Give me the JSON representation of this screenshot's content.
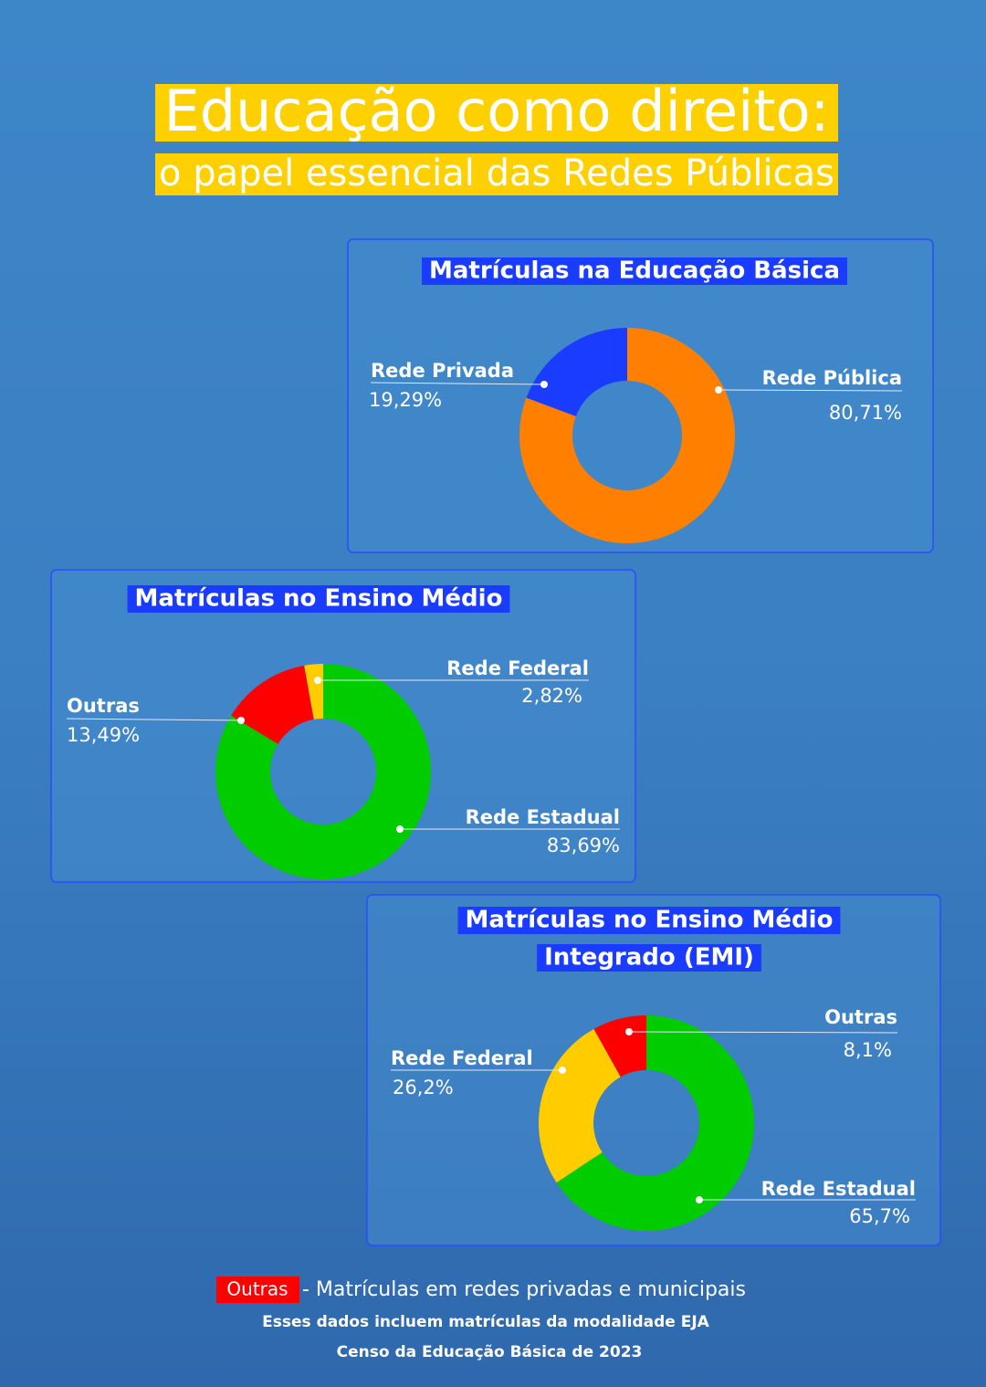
{
  "header": {
    "title": "Educação como direito:",
    "subtitle": "o papel essencial das Redes Públicas"
  },
  "chart_data": [
    {
      "type": "donut",
      "title": [
        "Matrículas na Educação Básica"
      ],
      "categories": [
        "Rede Pública",
        "Rede Privada"
      ],
      "values": [
        80.71,
        19.29
      ],
      "value_labels": [
        "80,71%",
        "19,29%"
      ],
      "colors": [
        "#ff8000",
        "#1a3cff"
      ]
    },
    {
      "type": "donut",
      "title": [
        "Matrículas no Ensino Médio"
      ],
      "categories": [
        "Rede Estadual",
        "Outras",
        "Rede Federal"
      ],
      "values": [
        83.69,
        13.49,
        2.82
      ],
      "value_labels": [
        "83,69%",
        "13,49%",
        "2,82%"
      ],
      "colors": [
        "#00cc00",
        "#ff0000",
        "#ffcc00"
      ]
    },
    {
      "type": "donut",
      "title": [
        "Matrículas no Ensino Médio",
        "Integrado (EMI)"
      ],
      "categories": [
        "Rede Estadual",
        "Rede Federal",
        "Outras"
      ],
      "values": [
        65.7,
        26.2,
        8.1
      ],
      "value_labels": [
        "65,7%",
        "26,2%",
        "8,1%"
      ],
      "colors": [
        "#00cc00",
        "#ffcc00",
        "#ff0000"
      ]
    }
  ],
  "footer": {
    "key": "Outras",
    "key_text": "- Matrículas em redes privadas e municipais",
    "note": "Esses dados incluem matrículas da modalidade EJA",
    "source": "Censo da Educação Básica de 2023"
  }
}
